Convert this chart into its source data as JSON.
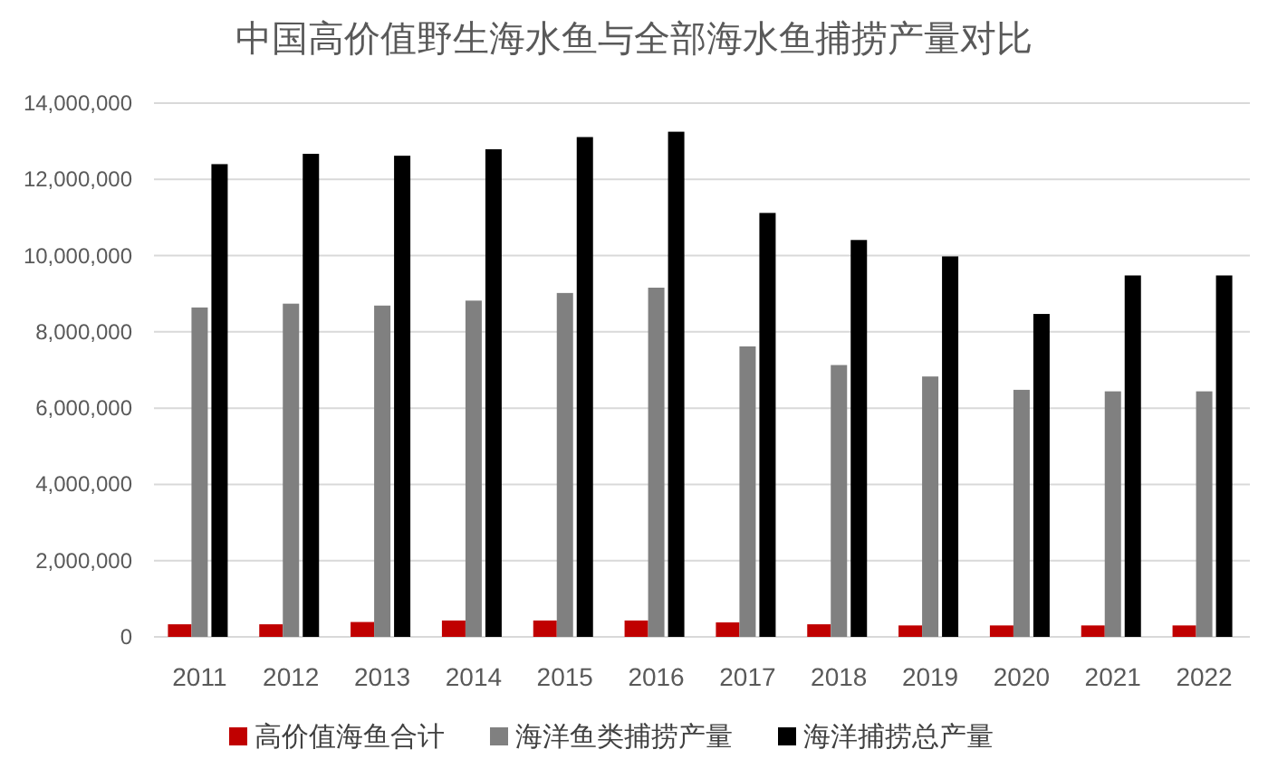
{
  "chart_data": {
    "type": "bar",
    "title": "中国高价值野生海水鱼与全部海水鱼捕捞产量对比",
    "categories": [
      "2011",
      "2012",
      "2013",
      "2014",
      "2015",
      "2016",
      "2017",
      "2018",
      "2019",
      "2020",
      "2021",
      "2022"
    ],
    "series": [
      {
        "name": "高价值海鱼合计",
        "color": "#c00000",
        "values": [
          330000,
          330000,
          390000,
          430000,
          430000,
          430000,
          380000,
          330000,
          300000,
          300000,
          300000,
          300000
        ]
      },
      {
        "name": "海洋鱼类捕捞产量",
        "color": "#808080",
        "values": [
          8640000,
          8740000,
          8690000,
          8820000,
          9020000,
          9160000,
          7620000,
          7130000,
          6830000,
          6480000,
          6440000,
          6440000
        ]
      },
      {
        "name": "海洋捕捞总产量",
        "color": "#000000",
        "values": [
          12400000,
          12670000,
          12620000,
          12790000,
          13110000,
          13250000,
          11120000,
          10410000,
          9980000,
          8470000,
          9480000,
          9480000
        ]
      }
    ],
    "ylim": [
      0,
      14000000
    ],
    "yticks": [
      {
        "value": 0,
        "label": "0"
      },
      {
        "value": 2000000,
        "label": "2,000,000"
      },
      {
        "value": 4000000,
        "label": "4,000,000"
      },
      {
        "value": 6000000,
        "label": "6,000,000"
      },
      {
        "value": 8000000,
        "label": "8,000,000"
      },
      {
        "value": 10000000,
        "label": "10,000,000"
      },
      {
        "value": 12000000,
        "label": "12,000,000"
      },
      {
        "value": 14000000,
        "label": "14,000,000"
      }
    ],
    "grid": "y",
    "legend": "bottom"
  }
}
